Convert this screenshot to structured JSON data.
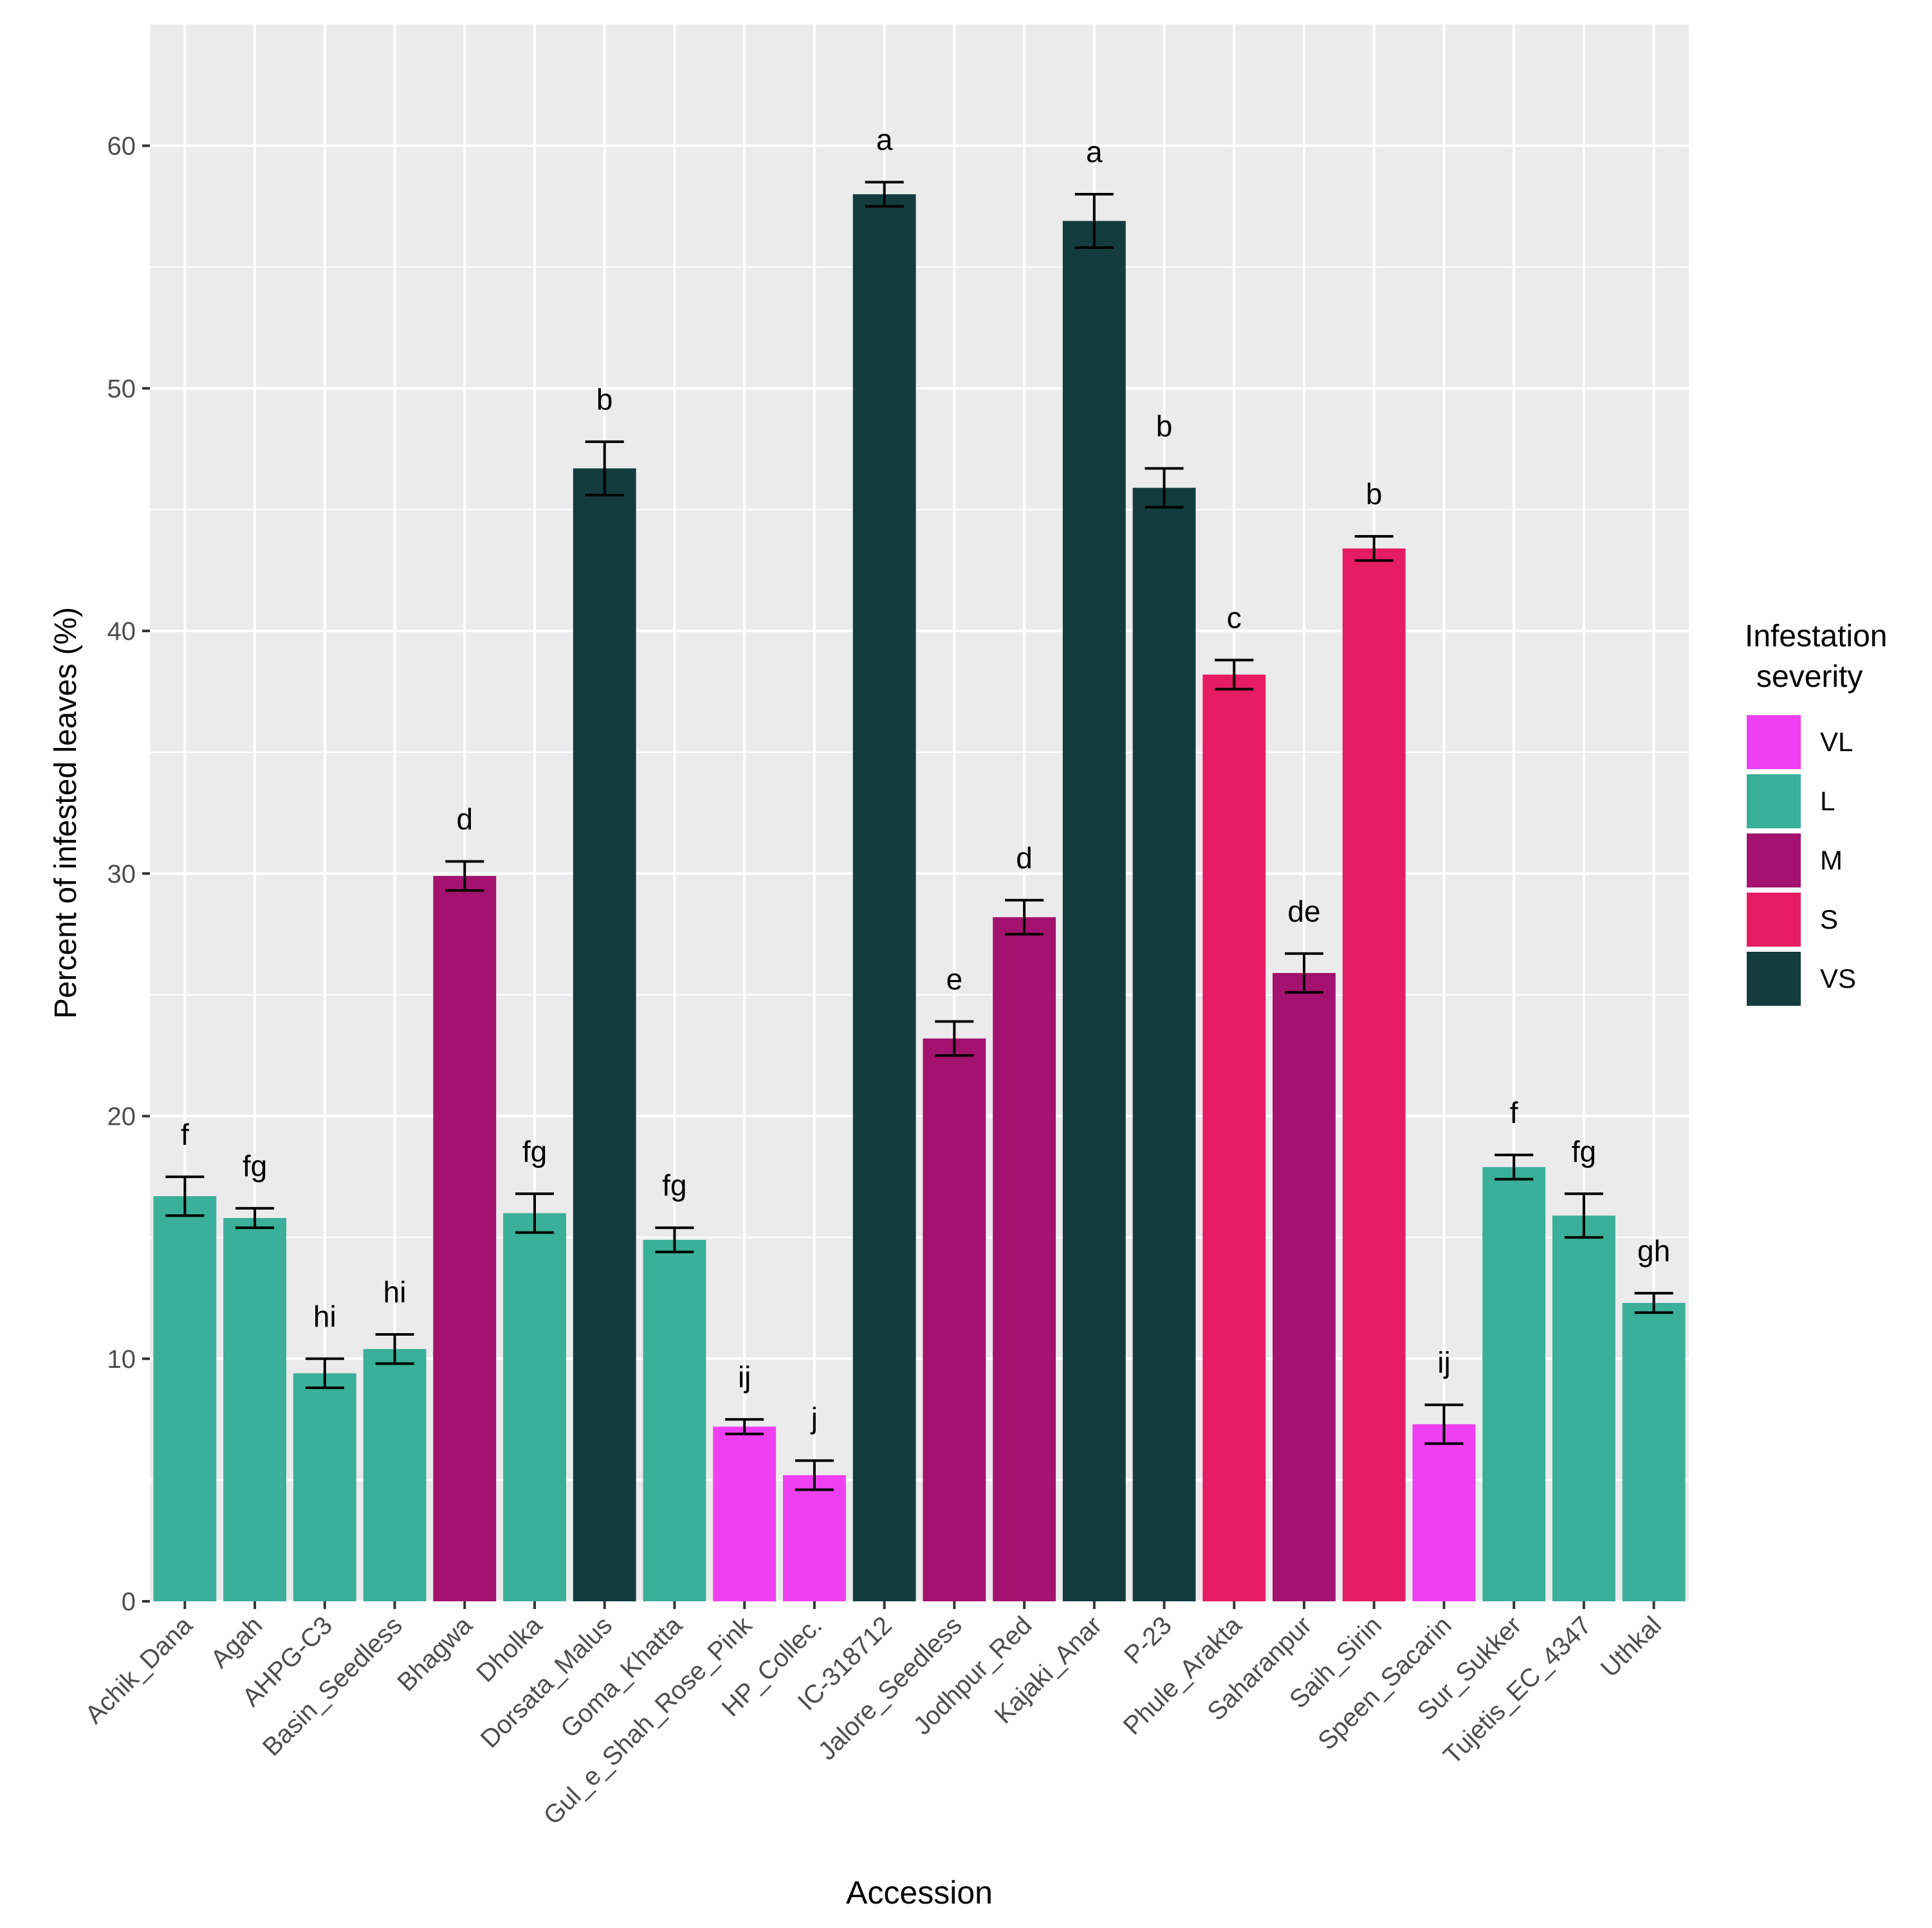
{
  "chart_data": {
    "type": "bar",
    "title": "",
    "xlabel": "Accession",
    "ylabel": "Percent of infested leaves (%)",
    "ylim": [
      0,
      65
    ],
    "yticks": [
      0,
      10,
      20,
      30,
      40,
      50,
      60
    ],
    "grid": true,
    "legend": {
      "title_lines": [
        "Infestation",
        "severity"
      ],
      "position": "right",
      "entries": [
        {
          "key": "VL",
          "label": "VL",
          "color": "#EE40F2"
        },
        {
          "key": "L",
          "label": "L",
          "color": "#3AAF99"
        },
        {
          "key": "M",
          "label": "M",
          "color": "#A3126F"
        },
        {
          "key": "S",
          "label": "S",
          "color": "#E61C62"
        },
        {
          "key": "VS",
          "label": "VS",
          "color": "#123C3E"
        }
      ]
    },
    "bars": [
      {
        "category": "Achik_Dana",
        "value": 16.7,
        "err": 0.8,
        "group": "L",
        "letter": "f"
      },
      {
        "category": "Agah",
        "value": 15.8,
        "err": 0.4,
        "group": "L",
        "letter": "fg"
      },
      {
        "category": "AHPG-C3",
        "value": 9.4,
        "err": 0.6,
        "group": "L",
        "letter": "hi"
      },
      {
        "category": "Basin_Seedless",
        "value": 10.4,
        "err": 0.6,
        "group": "L",
        "letter": "hi"
      },
      {
        "category": "Bhagwa",
        "value": 29.9,
        "err": 0.6,
        "group": "M",
        "letter": "d"
      },
      {
        "category": "Dholka",
        "value": 16.0,
        "err": 0.8,
        "group": "L",
        "letter": "fg"
      },
      {
        "category": "Dorsata_Malus",
        "value": 46.7,
        "err": 1.1,
        "group": "VS",
        "letter": "b"
      },
      {
        "category": "Goma_Khatta",
        "value": 14.9,
        "err": 0.5,
        "group": "L",
        "letter": "fg"
      },
      {
        "category": "Gul_e_Shah_Rose_Pink",
        "value": 7.2,
        "err": 0.3,
        "group": "VL",
        "letter": "ij"
      },
      {
        "category": "HP_Collec.",
        "value": 5.2,
        "err": 0.6,
        "group": "VL",
        "letter": "j"
      },
      {
        "category": "IC-318712",
        "value": 58.0,
        "err": 0.5,
        "group": "VS",
        "letter": "a"
      },
      {
        "category": "Jalore_Seedless",
        "value": 23.2,
        "err": 0.7,
        "group": "M",
        "letter": "e"
      },
      {
        "category": "Jodhpur_Red",
        "value": 28.2,
        "err": 0.7,
        "group": "M",
        "letter": "d"
      },
      {
        "category": "Kajaki_Anar",
        "value": 56.9,
        "err": 1.1,
        "group": "VS",
        "letter": "a"
      },
      {
        "category": "P-23",
        "value": 45.9,
        "err": 0.8,
        "group": "VS",
        "letter": "b"
      },
      {
        "category": "Phule_Arakta",
        "value": 38.2,
        "err": 0.6,
        "group": "S",
        "letter": "c"
      },
      {
        "category": "Saharanpur",
        "value": 25.9,
        "err": 0.8,
        "group": "M",
        "letter": "de"
      },
      {
        "category": "Saih_Sirin",
        "value": 43.4,
        "err": 0.5,
        "group": "S",
        "letter": "b"
      },
      {
        "category": "Speen_Sacarin",
        "value": 7.3,
        "err": 0.8,
        "group": "VL",
        "letter": "ij"
      },
      {
        "category": "Sur_Sukker",
        "value": 17.9,
        "err": 0.5,
        "group": "L",
        "letter": "f"
      },
      {
        "category": "Tujetis_EC_4347",
        "value": 15.9,
        "err": 0.9,
        "group": "L",
        "letter": "fg"
      },
      {
        "category": "Uthkal",
        "value": 12.3,
        "err": 0.4,
        "group": "L",
        "letter": "gh"
      }
    ]
  }
}
